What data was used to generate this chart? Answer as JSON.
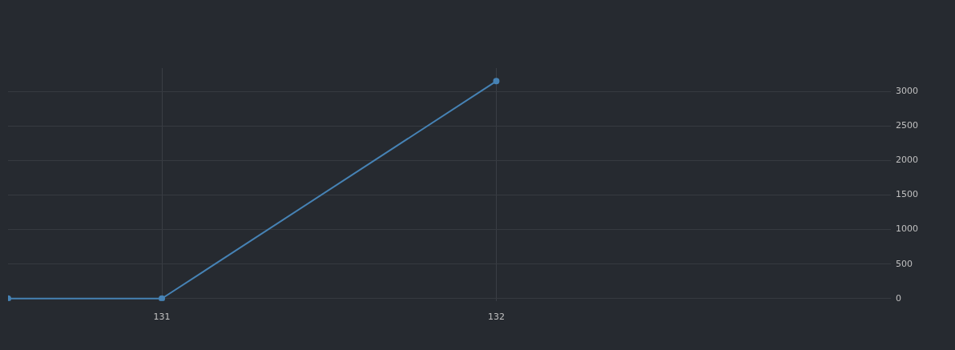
{
  "chart_data": {
    "type": "line",
    "x": [
      130.54,
      131,
      132
    ],
    "series": [
      {
        "color": "#4682b4",
        "values": [
          0,
          0,
          3150
        ]
      }
    ],
    "xlim": [
      130.54,
      133.18
    ],
    "xticks": [
      131,
      132
    ],
    "ylim": [
      -35,
      3340
    ],
    "yticks": [
      0,
      500,
      1000,
      1500,
      2000,
      2500,
      3000
    ],
    "grid": true,
    "marker": "circle",
    "line_style": "solid",
    "legend": false
  }
}
